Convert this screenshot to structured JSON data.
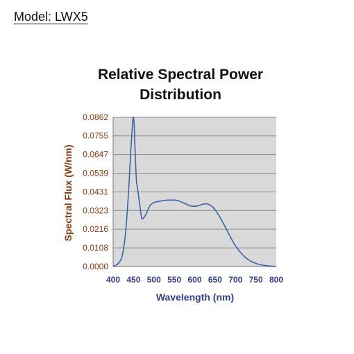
{
  "header": {
    "model_label": "Model: LWX5"
  },
  "chart_data": {
    "type": "line",
    "title_lines": [
      "Relative Spectral Power",
      "Distribution"
    ],
    "xlabel": "Wavelength (nm)",
    "ylabel": "Spectral Flux (W/nm)",
    "xlim": [
      400,
      800
    ],
    "ylim": [
      0,
      0.0862
    ],
    "xticks": [
      "400",
      "450",
      "500",
      "550",
      "600",
      "650",
      "700",
      "750",
      "800"
    ],
    "yticks": [
      "0.0000",
      "0.0108",
      "0.0216",
      "0.0323",
      "0.0431",
      "0.0539",
      "0.0647",
      "0.0755",
      "0.0862"
    ],
    "grid": true,
    "plot_background": "#d9d9d9",
    "line_color": "#3a64a8",
    "series": [
      {
        "x": [
          400,
          410,
          420,
          425,
          430,
          435,
          440,
          443,
          446,
          448,
          450,
          452,
          454,
          457,
          460,
          465,
          470,
          475,
          480,
          490,
          500,
          510,
          520,
          530,
          540,
          550,
          560,
          570,
          580,
          590,
          600,
          610,
          620,
          630,
          640,
          650,
          660,
          670,
          680,
          690,
          700,
          710,
          720,
          730,
          740,
          750,
          760,
          770,
          780,
          790,
          800
        ],
        "y": [
          0.0002,
          0.0012,
          0.0045,
          0.0095,
          0.0185,
          0.033,
          0.052,
          0.066,
          0.077,
          0.084,
          0.0862,
          0.08,
          0.066,
          0.05,
          0.045,
          0.036,
          0.028,
          0.0282,
          0.03,
          0.035,
          0.037,
          0.0375,
          0.038,
          0.0383,
          0.0384,
          0.0384,
          0.038,
          0.037,
          0.036,
          0.035,
          0.0348,
          0.0352,
          0.036,
          0.0362,
          0.0352,
          0.0328,
          0.0293,
          0.025,
          0.0205,
          0.016,
          0.012,
          0.0088,
          0.0062,
          0.0042,
          0.0028,
          0.0018,
          0.0011,
          0.0007,
          0.0004,
          0.0002,
          0.0001
        ]
      }
    ]
  }
}
